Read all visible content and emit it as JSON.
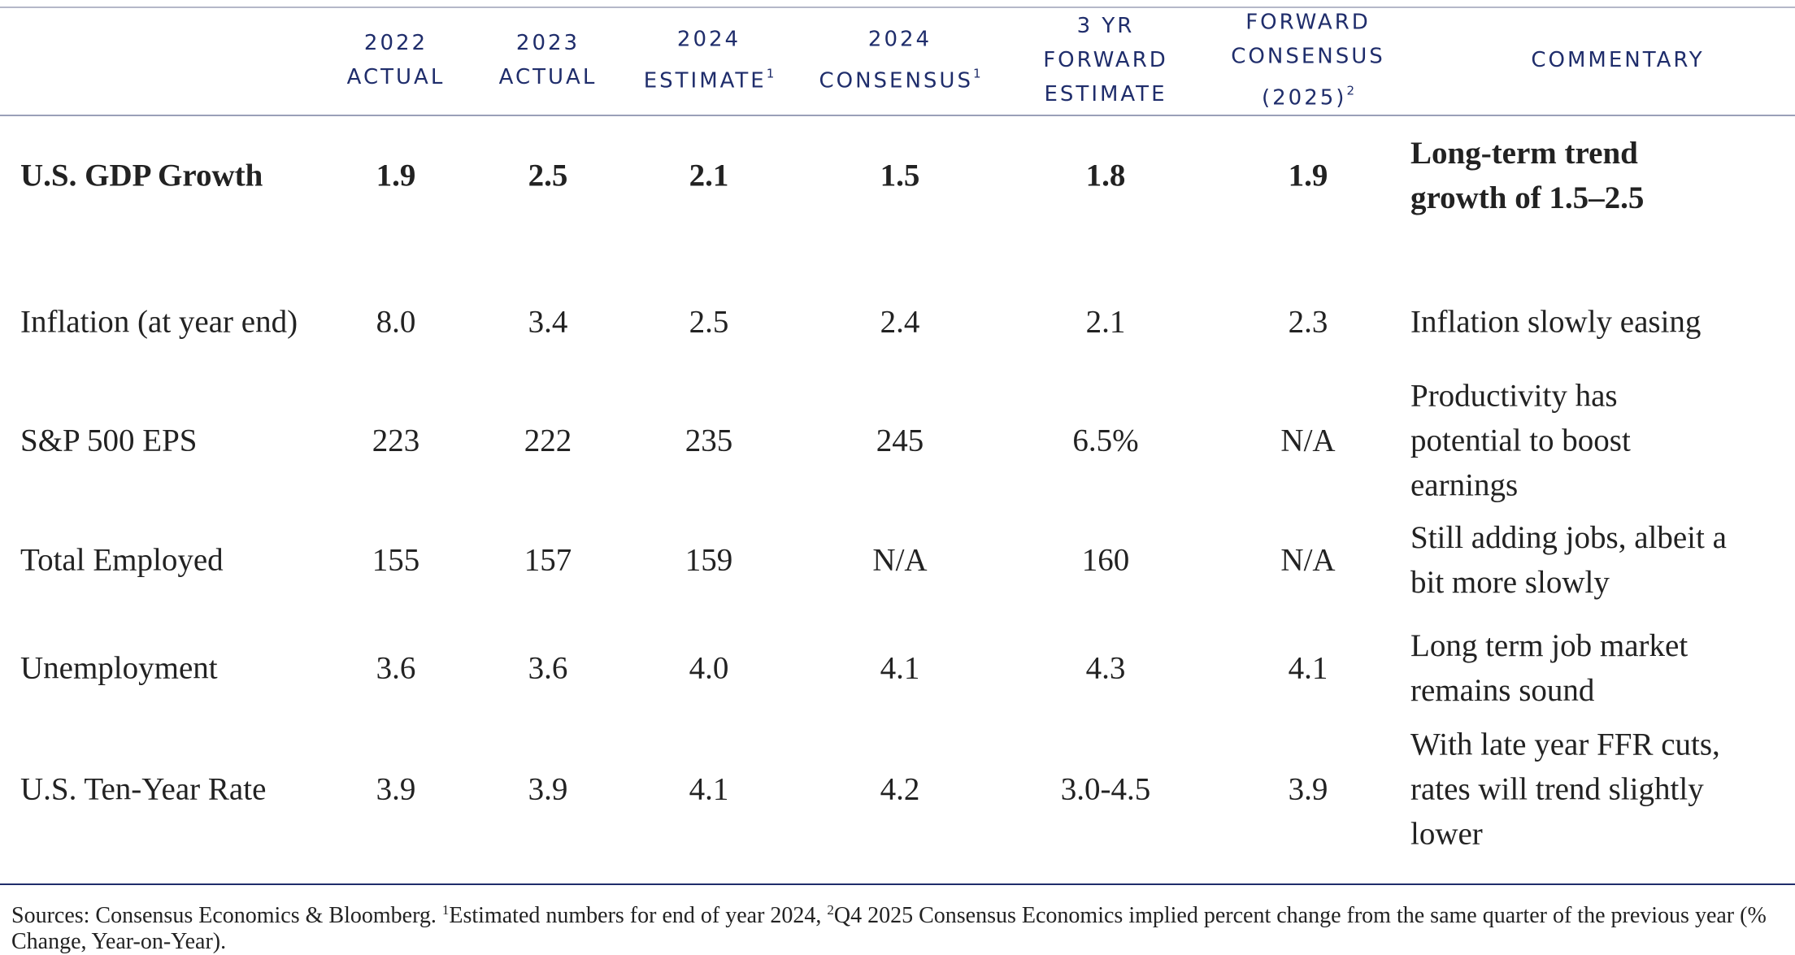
{
  "table": {
    "columns": [
      {
        "lines": [
          "2022",
          "ACTUAL"
        ]
      },
      {
        "lines": [
          "2023",
          "ACTUAL"
        ]
      },
      {
        "lines": [
          "2024",
          "ESTIMATE"
        ],
        "note": "1"
      },
      {
        "lines": [
          "2024",
          "CONSENSUS"
        ],
        "note": "1"
      },
      {
        "lines": [
          "3 YR",
          "FORWARD",
          "ESTIMATE"
        ]
      },
      {
        "lines": [
          "FORWARD",
          "CONSENSUS",
          "(2025)"
        ],
        "note": "2"
      },
      {
        "lines": [
          "COMMENTARY"
        ]
      }
    ],
    "rows": [
      {
        "label": "U.S. GDP Growth",
        "values": [
          "1.9",
          "2.5",
          "2.1",
          "1.5",
          "1.8",
          "1.9"
        ],
        "commentary": [
          "Long-term trend",
          "growth of 1.5–2.5"
        ]
      },
      {
        "label": "Inflation (at year end)",
        "values": [
          "8.0",
          "3.4",
          "2.5",
          "2.4",
          "2.1",
          "2.3"
        ],
        "commentary": [
          "Inflation slowly easing"
        ]
      },
      {
        "label": "S&P 500 EPS",
        "values": [
          "223",
          "222",
          "235",
          "245",
          "6.5%",
          "N/A"
        ],
        "commentary": [
          "Productivity has",
          "potential to boost",
          "earnings"
        ]
      },
      {
        "label": "Total Employed",
        "values": [
          "155",
          "157",
          "159",
          "N/A",
          "160",
          "N/A"
        ],
        "commentary": [
          "Still adding jobs, albeit a",
          "bit more slowly"
        ]
      },
      {
        "label": "Unemployment",
        "values": [
          "3.6",
          "3.6",
          "4.0",
          "4.1",
          "4.3",
          "4.1"
        ],
        "commentary": [
          "Long term job market",
          "remains sound"
        ]
      },
      {
        "label": "U.S. Ten-Year Rate",
        "values": [
          "3.9",
          "3.9",
          "4.1",
          "4.2",
          "3.0-4.5",
          "3.9"
        ],
        "commentary": [
          "With late year FFR cuts,",
          "rates will trend slightly",
          "lower"
        ]
      }
    ]
  },
  "footnote": {
    "source": "Sources: Consensus Economics & Bloomberg.",
    "marker1": "1",
    "note1": "Estimated numbers for end of year 2024,",
    "marker2": "2",
    "note2": "Q4 2025 Consensus Economics implied percent change from the same quarter of the previous year (% Change, Year-on-Year)."
  }
}
